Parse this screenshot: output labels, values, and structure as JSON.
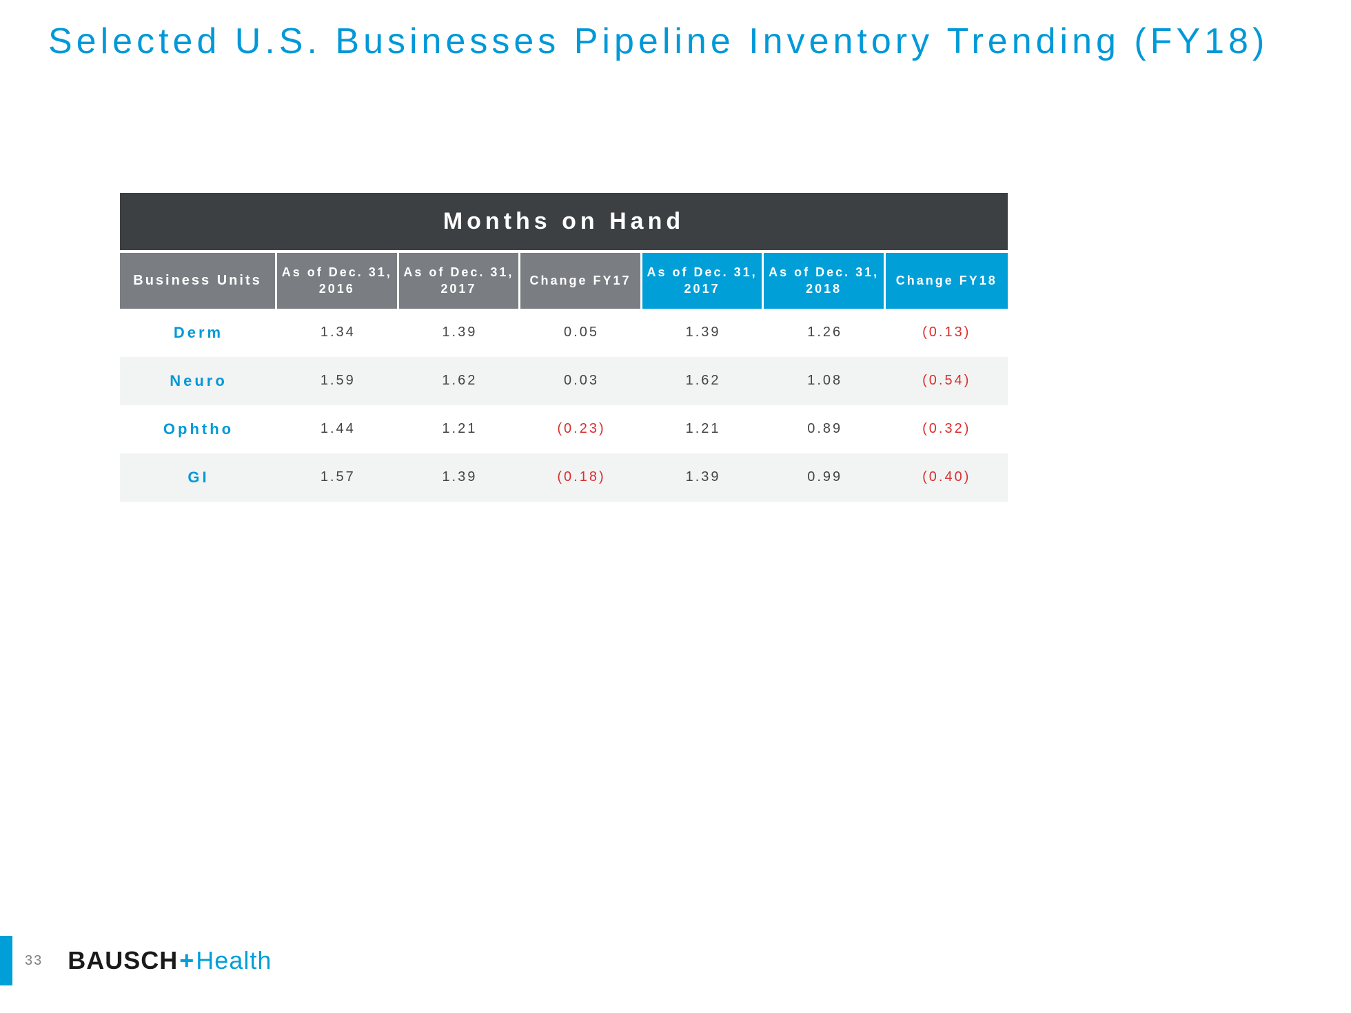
{
  "title": "Selected U.S. Businesses Pipeline Inventory Trending (FY18)",
  "table": {
    "banner": "Months on Hand",
    "headers": {
      "bu": "Business Units",
      "c1": "As of Dec. 31, 2016",
      "c2": "As of Dec. 31, 2017",
      "c3": "Change FY17",
      "c4": "As of Dec. 31, 2017",
      "c5": "As of Dec. 31, 2018",
      "c6": "Change FY18"
    },
    "rows": [
      {
        "name": "Derm",
        "v1": "1.34",
        "v2": "1.39",
        "v3": "0.05",
        "v3neg": false,
        "v4": "1.39",
        "v5": "1.26",
        "v6": "(0.13)",
        "v6neg": true
      },
      {
        "name": "Neuro",
        "v1": "1.59",
        "v2": "1.62",
        "v3": "0.03",
        "v3neg": false,
        "v4": "1.62",
        "v5": "1.08",
        "v6": "(0.54)",
        "v6neg": true
      },
      {
        "name": "Ophtho",
        "v1": "1.44",
        "v2": "1.21",
        "v3": "(0.23)",
        "v3neg": true,
        "v4": "1.21",
        "v5": "0.89",
        "v6": "(0.32)",
        "v6neg": true
      },
      {
        "name": "GI",
        "v1": "1.57",
        "v2": "1.39",
        "v3": "(0.18)",
        "v3neg": true,
        "v4": "1.39",
        "v5": "0.99",
        "v6": "(0.40)",
        "v6neg": true
      }
    ]
  },
  "footer": {
    "page": "33",
    "logo_bausch": "BAUSCH",
    "logo_plus": "+",
    "logo_health": "Health"
  },
  "colors": {
    "accent_blue": "#009fd8",
    "title_blue": "#0099d8",
    "dark_bar": "#3c4043",
    "hdr_gray": "#7a7e82",
    "row_alt": "#f2f3f3",
    "neg_red": "#d92f2f",
    "text": "#444444"
  }
}
